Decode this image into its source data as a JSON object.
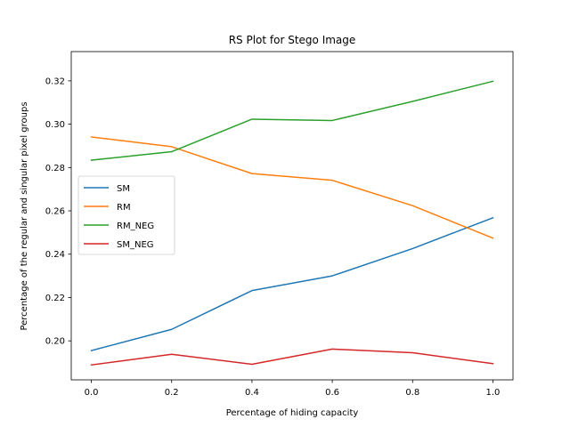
{
  "chart_data": {
    "type": "line",
    "title": "RS Plot for Stego Image",
    "xlabel": "Percentage of hiding capacity",
    "ylabel": "Percentage of the regular and singular pixel groups",
    "x": [
      0.0,
      0.2,
      0.4,
      0.6,
      0.8,
      1.0
    ],
    "xlim": [
      -0.05,
      1.05
    ],
    "ylim": [
      0.182,
      0.3335
    ],
    "xticks": [
      0.0,
      0.2,
      0.4,
      0.6,
      0.8,
      1.0
    ],
    "xtick_labels": [
      "0.0",
      "0.2",
      "0.4",
      "0.6",
      "0.8",
      "1.0"
    ],
    "yticks": [
      0.2,
      0.22,
      0.24,
      0.26,
      0.28,
      0.3,
      0.32
    ],
    "ytick_labels": [
      "0.20",
      "0.22",
      "0.24",
      "0.26",
      "0.28",
      "0.30",
      "0.32"
    ],
    "grid": false,
    "legend_position": "center-left",
    "series": [
      {
        "name": "SM",
        "color": "#1f77b4",
        "values": [
          0.1955,
          0.2053,
          0.2232,
          0.23,
          0.2426,
          0.2568
        ]
      },
      {
        "name": "RM",
        "color": "#ff7f0e",
        "values": [
          0.2941,
          0.2896,
          0.2772,
          0.2741,
          0.2624,
          0.2474
        ]
      },
      {
        "name": "RM_NEG",
        "color": "#2ca02c",
        "values": [
          0.2834,
          0.2873,
          0.3023,
          0.3017,
          0.3105,
          0.3198
        ]
      },
      {
        "name": "SM_NEG",
        "color": "#d62728",
        "values": [
          0.1889,
          0.1938,
          0.1892,
          0.1962,
          0.1945,
          0.1895
        ]
      }
    ]
  }
}
